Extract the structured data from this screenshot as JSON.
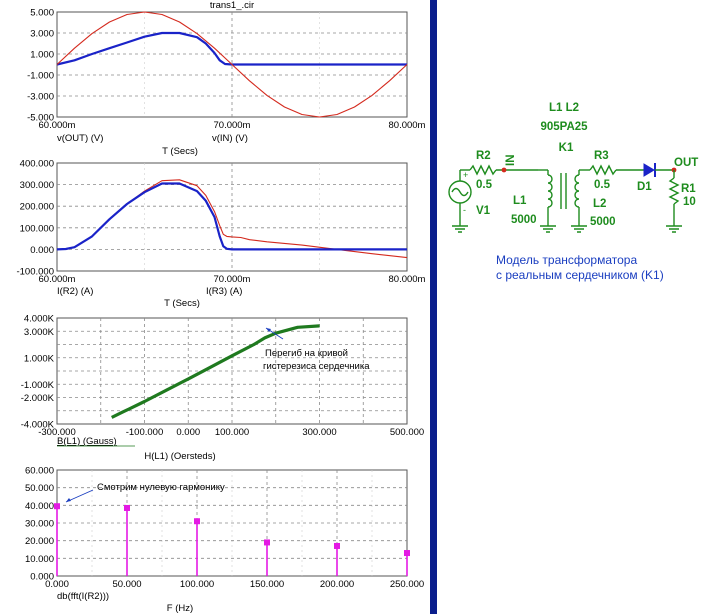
{
  "app_title": "trans1_.cir",
  "colors": {
    "red": "#d42a1e",
    "blue": "#1a23c8",
    "green": "#1f7a1f",
    "magenta": "#e41ae4",
    "grid": "#8a8a8a",
    "divider": "#0a1e8c",
    "schematic": "#1e8c1e",
    "note_blue": "#1a3ec0"
  },
  "chart_data": [
    {
      "type": "line",
      "id": "plot1",
      "xlim": [
        60,
        80
      ],
      "ylim": [
        -5,
        5
      ],
      "yticks": [
        5,
        3,
        1,
        -1,
        -3,
        -5
      ],
      "ytick_labels": [
        "5.000",
        "3.000",
        "1.000",
        "-1.000",
        "-3.000",
        "-5.000"
      ],
      "xticks": [
        60,
        70,
        80
      ],
      "xtick_labels": [
        "60.000m",
        "70.000m",
        "80.000m"
      ],
      "xlabel": "T (Secs)",
      "series": [
        {
          "name": "v(OUT) (V)",
          "color": "#1a23c8",
          "x": [
            60,
            61,
            62,
            63,
            64,
            65,
            66,
            67,
            68,
            68.5,
            69,
            69.3,
            69.6,
            70,
            72,
            75,
            80
          ],
          "y": [
            0,
            0.4,
            1.0,
            1.55,
            2.1,
            2.65,
            3.0,
            3.0,
            2.6,
            2.0,
            1.1,
            0.4,
            0.05,
            0,
            0,
            0,
            0
          ]
        },
        {
          "name": "v(IN) (V)",
          "color": "#d42a1e",
          "x": [
            60,
            61,
            62,
            63,
            64,
            65,
            66,
            67,
            68,
            69,
            70,
            71,
            72,
            73,
            74,
            75,
            76,
            77,
            78,
            79,
            80
          ],
          "y": [
            0,
            1.55,
            2.94,
            4.05,
            4.76,
            5.0,
            4.76,
            4.05,
            2.94,
            1.55,
            0,
            -1.55,
            -2.94,
            -4.05,
            -4.76,
            -5.0,
            -4.76,
            -4.05,
            -2.94,
            -1.55,
            0
          ]
        }
      ]
    },
    {
      "type": "line",
      "id": "plot2",
      "xlim": [
        60,
        80
      ],
      "ylim": [
        -100,
        400
      ],
      "yticks": [
        400,
        300,
        200,
        100,
        0,
        -100
      ],
      "ytick_labels": [
        "400.000",
        "300.000",
        "200.000",
        "100.000",
        "0.000",
        "-100.000"
      ],
      "xticks": [
        60,
        70,
        80
      ],
      "xtick_labels": [
        "60.000m",
        "70.000m",
        "80.000m"
      ],
      "xlabel": "T (Secs)",
      "series": [
        {
          "name": "I(R2) (A)",
          "color": "#d42a1e",
          "x": [
            60,
            60.5,
            61,
            62,
            63,
            64,
            65,
            66,
            67,
            68,
            68.5,
            69,
            69.3,
            69.5,
            69.7,
            70,
            70.5,
            71,
            72,
            74,
            76,
            78,
            80
          ],
          "y": [
            0,
            2,
            10,
            60,
            140,
            210,
            270,
            318,
            322,
            295,
            250,
            175,
            110,
            70,
            60,
            58,
            55,
            45,
            35,
            20,
            0,
            -20,
            -38
          ]
        },
        {
          "name": "I(R3) (A)",
          "color": "#1a23c8",
          "x": [
            60,
            60.5,
            61,
            62,
            63,
            64,
            65,
            66,
            67,
            68,
            68.5,
            69,
            69.3,
            69.5,
            69.7,
            70,
            72,
            76,
            80
          ],
          "y": [
            0,
            2,
            10,
            60,
            140,
            210,
            265,
            305,
            305,
            270,
            225,
            150,
            60,
            15,
            3,
            0,
            0,
            0,
            0
          ]
        }
      ]
    },
    {
      "type": "line",
      "id": "plot3",
      "xlim": [
        -300,
        500
      ],
      "ylim": [
        -4000,
        4000
      ],
      "yticks": [
        4000,
        3000,
        1000,
        -1000,
        -2000,
        -4000
      ],
      "ytick_labels": [
        "4.000K",
        "3.000K",
        "1.000K",
        "-1.000K",
        "-2.000K",
        "-4.000K"
      ],
      "xticks": [
        -300,
        -100,
        0,
        100,
        300,
        500
      ],
      "xtick_labels": [
        "-300.000",
        "-100.000",
        "0.000",
        "100.000",
        "300.000",
        "500.000"
      ],
      "xlabel": "H(L1) (Oersteds)",
      "series": [
        {
          "name": "B(L1) (Gauss)",
          "color": "#1f7a1f",
          "x": [
            -175,
            -150,
            -100,
            -50,
            0,
            50,
            100,
            150,
            175,
            200,
            250,
            300
          ],
          "y": [
            -3500,
            -3100,
            -2300,
            -1450,
            -600,
            270,
            1150,
            2000,
            2500,
            2850,
            3300,
            3400
          ]
        }
      ]
    },
    {
      "type": "bar",
      "id": "plot4",
      "xlim": [
        0,
        250
      ],
      "ylim": [
        0,
        60
      ],
      "yticks": [
        60,
        50,
        40,
        30,
        20,
        10,
        0
      ],
      "ytick_labels": [
        "60.000",
        "50.000",
        "40.000",
        "30.000",
        "20.000",
        "10.000",
        "0.000"
      ],
      "xticks": [
        0,
        50,
        100,
        150,
        200,
        250
      ],
      "xtick_labels": [
        "0.000",
        "50.000",
        "100.000",
        "150.000",
        "200.000",
        "250.000"
      ],
      "xlabel": "F (Hz)",
      "series": [
        {
          "name": "db(fft(I(R2)))",
          "color": "#e41ae4",
          "x": [
            0,
            50,
            100,
            150,
            200,
            250
          ],
          "values": [
            39.5,
            38.5,
            31,
            19,
            17,
            13
          ]
        }
      ]
    }
  ],
  "annotations": {
    "plot3_note_line1": "Перегиб на кривой",
    "plot3_note_line2": "гистерезиса сердечника",
    "plot4_note": "Смотрим нулевую гармонику"
  },
  "schematic": {
    "l_title": "L1 L2",
    "model": "905PA25",
    "k_label": "K1",
    "r2_label": "R2",
    "r2_value": "0.5",
    "v1_label": "V1",
    "in_label": "IN",
    "l1_label": "L1",
    "l1_value": "5000",
    "l2_label": "L2",
    "l2_value": "5000",
    "r3_label": "R3",
    "r3_value": "0.5",
    "d1_label": "D1",
    "out_label": "OUT",
    "r1_label": "R1",
    "r1_value": "10",
    "plus": "+",
    "minus": "-",
    "caption_line1": "Модель трансформатора",
    "caption_line2": "с реальным сердечником (K1)"
  }
}
